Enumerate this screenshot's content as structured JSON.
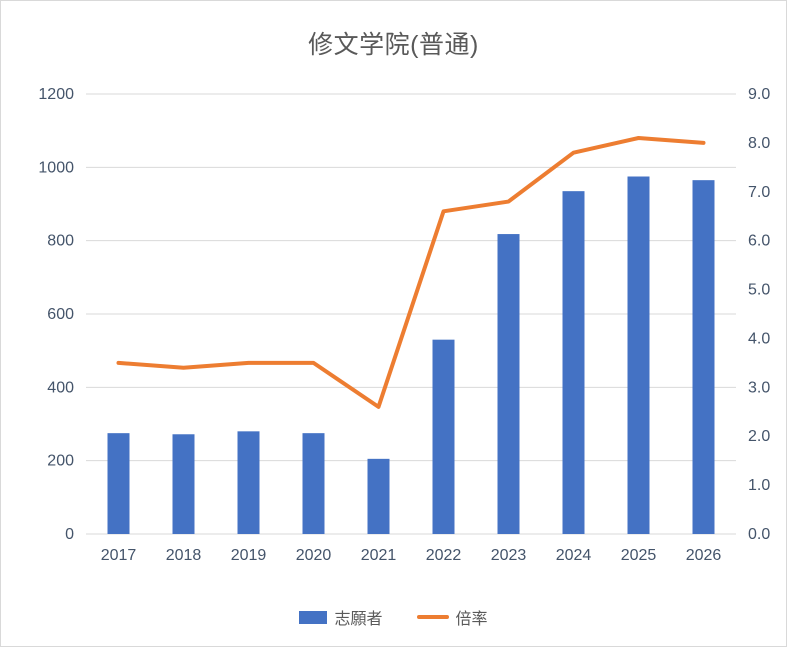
{
  "chart_data": {
    "type": "combo",
    "title": "修文学院(普通)",
    "categories": [
      "2017",
      "2018",
      "2019",
      "2020",
      "2021",
      "2022",
      "2023",
      "2024",
      "2025",
      "2026"
    ],
    "series": [
      {
        "name": "志願者",
        "type": "bar",
        "axis": "left",
        "color": "#4472C4",
        "values": [
          275,
          272,
          280,
          275,
          205,
          530,
          818,
          935,
          975,
          965
        ]
      },
      {
        "name": "倍率",
        "type": "line",
        "axis": "right",
        "color": "#ED7D31",
        "values": [
          3.5,
          3.4,
          3.5,
          3.5,
          2.6,
          6.6,
          6.8,
          7.8,
          8.1,
          8.0
        ]
      }
    ],
    "left_axis": {
      "min": 0,
      "max": 1200,
      "step": 200
    },
    "right_axis": {
      "min": 0,
      "max": 9,
      "step": 1,
      "decimals": 1
    },
    "grid": true,
    "legend_position": "bottom",
    "colors": {
      "grid": "#D9D9D9",
      "axis_text": "#44546A",
      "title_text": "#595959",
      "legend_text": "#595959",
      "frame_border": "#D9D9D9",
      "background": "#FFFFFF"
    }
  }
}
